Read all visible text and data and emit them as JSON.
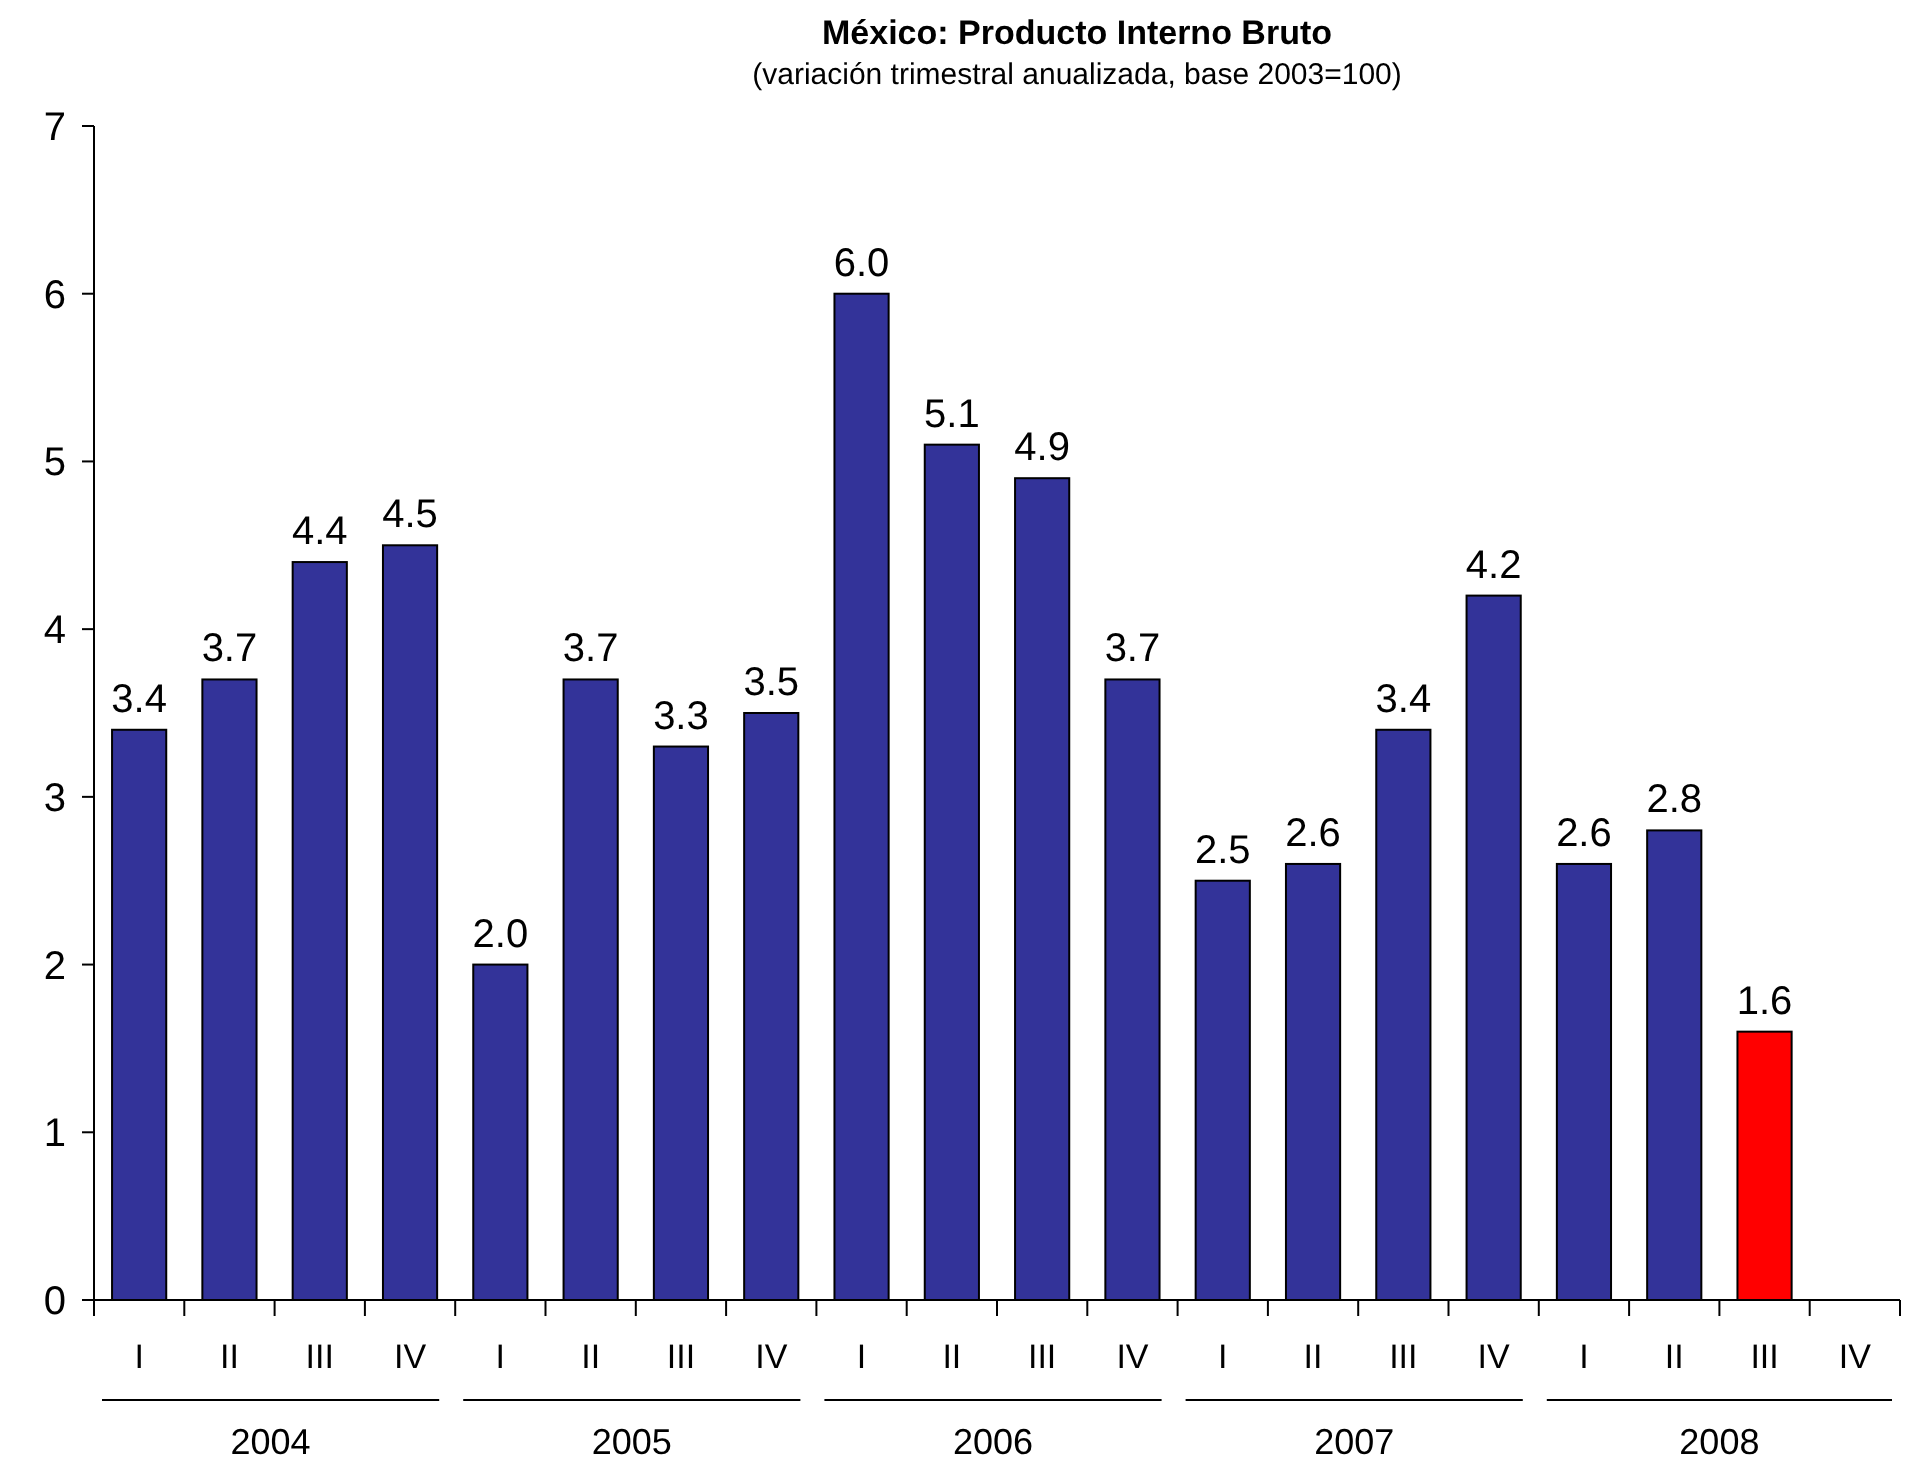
{
  "chart_data": {
    "type": "bar",
    "title": "México: Producto Interno Bruto",
    "subtitle": "(variación trimestral anualizada, base 2003=100)",
    "categories": [
      "I",
      "II",
      "III",
      "IV",
      "I",
      "II",
      "III",
      "IV",
      "I",
      "II",
      "III",
      "IV",
      "I",
      "II",
      "III",
      "IV",
      "I",
      "II",
      "III",
      "IV"
    ],
    "values": [
      3.4,
      3.7,
      4.4,
      4.5,
      2.0,
      3.7,
      3.3,
      3.5,
      6.0,
      5.1,
      4.9,
      3.7,
      2.5,
      2.6,
      3.4,
      4.2,
      2.6,
      2.8,
      1.6,
      null
    ],
    "value_labels": [
      "3.4",
      "3.7",
      "4.4",
      "4.5",
      "2.0",
      "3.7",
      "3.3",
      "3.5",
      "6.0",
      "5.1",
      "4.9",
      "3.7",
      "2.5",
      "2.6",
      "3.4",
      "4.2",
      "2.6",
      "2.8",
      "1.6",
      null
    ],
    "colors": [
      "#333399",
      "#333399",
      "#333399",
      "#333399",
      "#333399",
      "#333399",
      "#333399",
      "#333399",
      "#333399",
      "#333399",
      "#333399",
      "#333399",
      "#333399",
      "#333399",
      "#333399",
      "#333399",
      "#333399",
      "#333399",
      "#ff0000",
      "#333399"
    ],
    "annotations": [
      "2004",
      "2005",
      "2006",
      "2007",
      "2008"
    ],
    "ylim": [
      0,
      7
    ],
    "yticks": [
      0,
      1,
      2,
      3,
      4,
      5,
      6,
      7
    ],
    "grid": false
  }
}
